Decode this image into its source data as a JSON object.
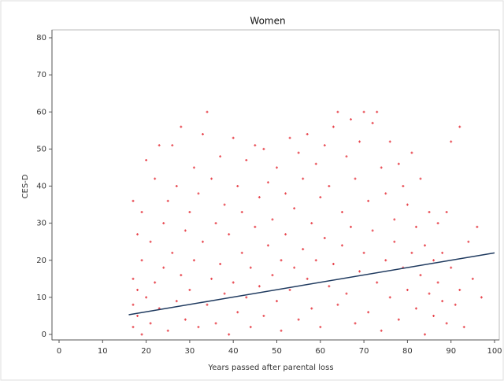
{
  "chart_data": {
    "type": "scatter",
    "title": "Women",
    "x_label": "Years passed after parental loss",
    "y_label": "CES-D",
    "xlim": [
      0,
      100
    ],
    "xticks": [
      0,
      10,
      20,
      30,
      40,
      50,
      60,
      70,
      80,
      90,
      100
    ],
    "ylim": [
      0,
      80
    ],
    "yticks": [
      0,
      10,
      20,
      30,
      40,
      50,
      60,
      70,
      80
    ],
    "series": [
      {
        "color": "#e8474f",
        "x": [
          17,
          17,
          17,
          17,
          18,
          18,
          18,
          19,
          19,
          19,
          20,
          20,
          21,
          21,
          22,
          22,
          23,
          23,
          24,
          24,
          25,
          25,
          26,
          26,
          27,
          27,
          28,
          28,
          29,
          29,
          30,
          30,
          31,
          31,
          32,
          32,
          33,
          33,
          34,
          34,
          35,
          35,
          36,
          36,
          37,
          37,
          38,
          38,
          39,
          39,
          40,
          40,
          41,
          41,
          42,
          42,
          43,
          43,
          44,
          44,
          45,
          45,
          46,
          46,
          47,
          47,
          48,
          48,
          49,
          49,
          50,
          50,
          51,
          51,
          52,
          52,
          53,
          53,
          54,
          54,
          55,
          55,
          56,
          56,
          57,
          57,
          58,
          58,
          59,
          59,
          60,
          60,
          61,
          61,
          62,
          62,
          63,
          63,
          64,
          64,
          65,
          65,
          66,
          66,
          67,
          67,
          68,
          68,
          69,
          69,
          70,
          70,
          71,
          71,
          72,
          72,
          73,
          73,
          74,
          74,
          75,
          75,
          76,
          76,
          77,
          77,
          78,
          78,
          79,
          79,
          80,
          80,
          81,
          81,
          82,
          82,
          83,
          83,
          84,
          84,
          85,
          85,
          86,
          86,
          87,
          87,
          88,
          88,
          89,
          89,
          90,
          90,
          91,
          92,
          92,
          93,
          94,
          95,
          96,
          97
        ],
        "values": [
          2,
          8,
          15,
          36,
          5,
          12,
          27,
          0,
          20,
          33,
          47,
          10,
          3,
          25,
          42,
          14,
          51,
          7,
          30,
          18,
          1,
          36,
          22,
          51,
          9,
          40,
          56,
          16,
          4,
          28,
          33,
          12,
          45,
          20,
          2,
          38,
          54,
          25,
          60,
          8,
          15,
          42,
          30,
          3,
          48,
          19,
          11,
          35,
          0,
          27,
          53,
          14,
          40,
          6,
          22,
          33,
          47,
          10,
          18,
          2,
          51,
          29,
          37,
          13,
          50,
          5,
          24,
          41,
          16,
          31,
          45,
          9,
          20,
          1,
          38,
          27,
          53,
          12,
          34,
          18,
          49,
          4,
          23,
          42,
          54,
          15,
          30,
          7,
          46,
          20,
          37,
          2,
          51,
          26,
          13,
          40,
          56,
          19,
          60,
          8,
          33,
          24,
          48,
          11,
          58,
          29,
          3,
          42,
          52,
          17,
          60,
          22,
          36,
          6,
          57,
          28,
          60,
          14,
          45,
          1,
          38,
          20,
          52,
          10,
          31,
          25,
          46,
          4,
          18,
          40,
          35,
          12,
          49,
          22,
          29,
          7,
          42,
          16,
          24,
          0,
          33,
          11,
          20,
          5,
          30,
          14,
          9,
          22,
          33,
          3,
          18,
          52,
          8,
          56,
          12,
          2,
          25,
          15,
          29,
          10
        ]
      },
      {
        "type": "line",
        "color": "#1f3a5f",
        "x": [
          16,
          100
        ],
        "values": [
          5.3,
          22
        ]
      }
    ]
  }
}
